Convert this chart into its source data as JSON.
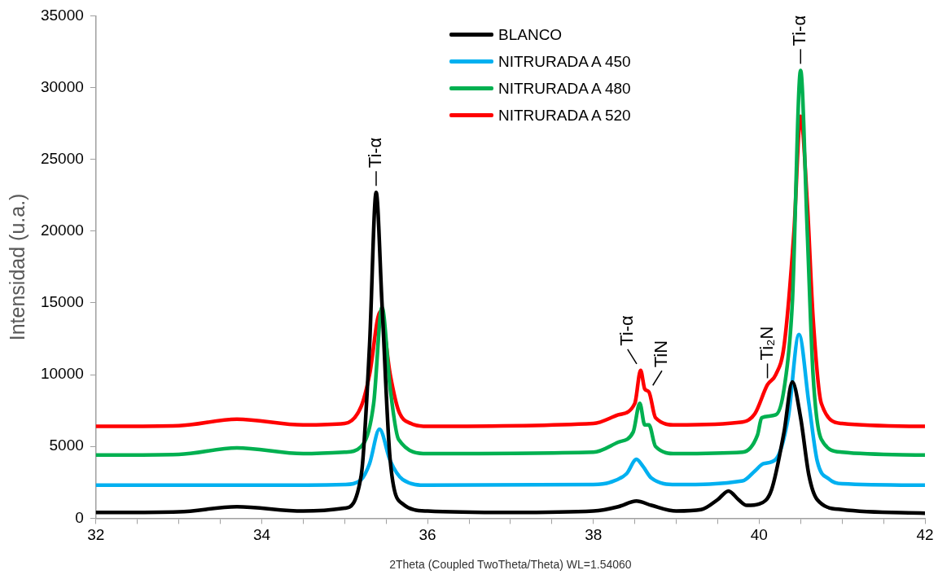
{
  "chart_data": {
    "type": "line",
    "xlabel": "2Theta (Coupled TwoTheta/Theta) WL=1.54060",
    "ylabel": "Intensidad (u.a.)",
    "xlim": [
      32,
      42
    ],
    "xticks": [
      32,
      {
        "value": 32.5,
        "label": null
      },
      {
        "value": 33,
        "label": null
      },
      {
        "value": 33.5,
        "label": null
      },
      34,
      {
        "value": 34.5,
        "label": null
      },
      {
        "value": 35,
        "label": null
      },
      {
        "value": 35.5,
        "label": null
      },
      36,
      {
        "value": 36.5,
        "label": null
      },
      {
        "value": 37,
        "label": null
      },
      {
        "value": 37.5,
        "label": null
      },
      38,
      {
        "value": 38.5,
        "label": null
      },
      {
        "value": 39,
        "label": null
      },
      {
        "value": 39.5,
        "label": null
      },
      40,
      {
        "value": 40.5,
        "label": null
      },
      {
        "value": 41,
        "label": null
      },
      {
        "value": 41.5,
        "label": null
      },
      42
    ],
    "ylim": [
      0,
      35000
    ],
    "yticks": [
      0,
      5000,
      10000,
      15000,
      20000,
      25000,
      30000,
      35000
    ],
    "grid": false,
    "legend": "top",
    "marker": "none",
    "line_style": "solid",
    "series": [
      {
        "name": "BLANCO",
        "color": "#000000",
        "x": [
          32,
          33,
          33.7,
          34.5,
          35,
          35.2,
          35.3,
          35.38,
          35.45,
          35.55,
          35.7,
          36,
          37,
          38,
          38.3,
          38.52,
          38.7,
          39,
          39.3,
          39.5,
          39.63,
          39.75,
          39.85,
          40,
          40.15,
          40.3,
          40.4,
          40.5,
          40.6,
          40.7,
          41,
          42
        ],
        "values": [
          400,
          450,
          800,
          500,
          700,
          3000,
          12000,
          22700,
          15000,
          4000,
          1000,
          500,
          400,
          500,
          800,
          1200,
          900,
          500,
          600,
          1300,
          1900,
          1300,
          900,
          1000,
          2000,
          6000,
          9500,
          7000,
          3000,
          1300,
          600,
          350
        ]
      },
      {
        "name": "NITRURADA A 450",
        "color": "#00b0f0",
        "x": [
          32,
          34,
          35,
          35.2,
          35.3,
          35.42,
          35.55,
          35.7,
          36,
          38,
          38.2,
          38.4,
          38.52,
          38.6,
          38.7,
          39,
          39.8,
          39.95,
          40.05,
          40.2,
          40.35,
          40.48,
          40.6,
          40.7,
          40.85,
          41,
          42
        ],
        "values": [
          2300,
          2300,
          2350,
          2700,
          3800,
          6200,
          4000,
          2700,
          2300,
          2350,
          2500,
          3100,
          4100,
          3600,
          2800,
          2350,
          2600,
          3300,
          3800,
          4100,
          7000,
          12800,
          8000,
          4000,
          2700,
          2400,
          2300
        ]
      },
      {
        "name": "NITRURADA A 480",
        "color": "#00b050",
        "x": [
          32,
          33,
          33.7,
          34.5,
          35,
          35.2,
          35.35,
          35.45,
          35.55,
          35.65,
          36,
          38,
          38.3,
          38.48,
          38.56,
          38.62,
          38.67,
          38.75,
          39,
          39.8,
          39.98,
          40.03,
          40.2,
          40.3,
          40.4,
          40.5,
          40.58,
          40.65,
          40.75,
          41,
          42
        ],
        "values": [
          4400,
          4450,
          4900,
          4500,
          4600,
          5000,
          8000,
          14700,
          9000,
          5500,
          4500,
          4600,
          5300,
          6000,
          8000,
          6500,
          6500,
          5000,
          4500,
          4600,
          5800,
          7000,
          7200,
          9000,
          15000,
          31200,
          20000,
          10000,
          5500,
          4600,
          4400
        ]
      },
      {
        "name": "NITRURADA A 520",
        "color": "#ff0000",
        "x": [
          32,
          33,
          33.7,
          34.5,
          35,
          35.2,
          35.3,
          35.43,
          35.55,
          35.65,
          35.8,
          36,
          38,
          38.3,
          38.5,
          38.57,
          38.62,
          38.67,
          38.75,
          39,
          39.8,
          39.95,
          40.1,
          40.2,
          40.3,
          40.42,
          40.5,
          40.58,
          40.65,
          40.75,
          41,
          42
        ],
        "values": [
          6400,
          6450,
          6900,
          6500,
          6600,
          7800,
          10000,
          14400,
          10000,
          7500,
          6600,
          6400,
          6600,
          7200,
          8000,
          10300,
          9000,
          8800,
          7000,
          6500,
          6700,
          7300,
          9300,
          10000,
          12000,
          20000,
          28000,
          22000,
          14000,
          8000,
          6600,
          6400
        ]
      }
    ],
    "annotations": [
      {
        "text": "Ti-α",
        "x": 35.38,
        "y": 22700
      },
      {
        "text": "Ti-α",
        "x": 38.57,
        "y": 10300
      },
      {
        "text": "TiN",
        "x": 38.67,
        "y": 8800
      },
      {
        "text": "Ti₂N",
        "x": 40.1,
        "y": 9300
      },
      {
        "text": "Ti-α",
        "x": 40.5,
        "y": 31200
      }
    ]
  }
}
